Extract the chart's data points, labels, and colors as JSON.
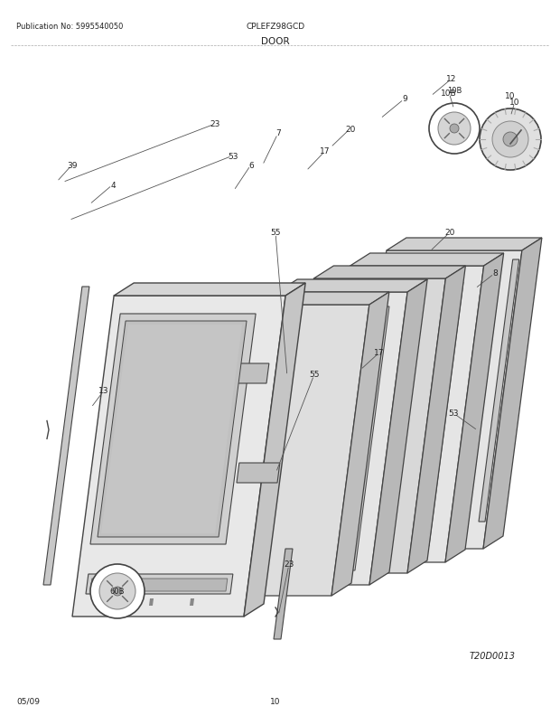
{
  "publication_no": "Publication No: 5995540050",
  "model": "CPLEFZ98GCD",
  "section": "DOOR",
  "diagram_id": "T20D0013",
  "date": "05/09",
  "page": "10",
  "background_color": "#ffffff",
  "text_color": "#222222",
  "fig_width": 6.2,
  "fig_height": 8.03,
  "dpi": 100
}
